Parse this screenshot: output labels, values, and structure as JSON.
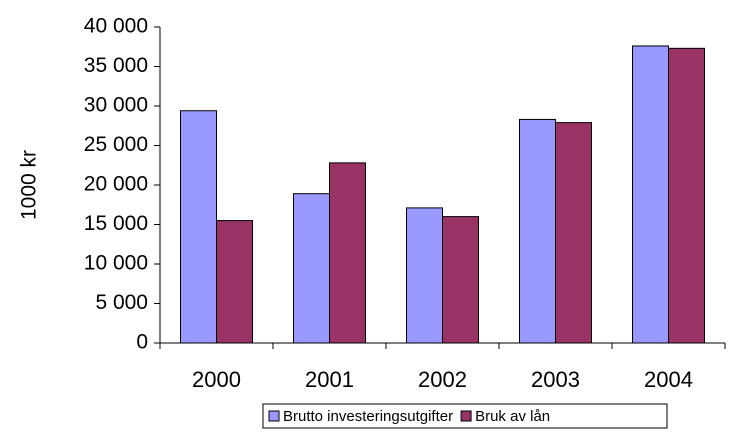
{
  "chart_data": {
    "type": "bar",
    "y_label": "1000 kr",
    "categories": [
      "2000",
      "2001",
      "2002",
      "2003",
      "2004"
    ],
    "series": [
      {
        "name": "Brutto investeringsutgifter",
        "color": "#9999ff",
        "values": [
          29400,
          18900,
          17100,
          28300,
          37600
        ]
      },
      {
        "name": "Bruk av lån",
        "color": "#993366",
        "values": [
          15500,
          22800,
          16000,
          27900,
          37300
        ]
      }
    ],
    "ylim": [
      0,
      40000
    ],
    "yticks": [
      0,
      {
        "value": 5000,
        "label": "5 000"
      },
      {
        "value": 10000,
        "label": "10 000"
      },
      {
        "value": 15000,
        "label": "15 000"
      },
      {
        "value": 20000,
        "label": "20 000"
      },
      {
        "value": 25000,
        "label": "25 000"
      },
      {
        "value": 30000,
        "label": "30 000"
      },
      {
        "value": 35000,
        "label": "35 000"
      },
      {
        "value": 40000,
        "label": "40 000"
      }
    ],
    "legend": "bottom"
  }
}
